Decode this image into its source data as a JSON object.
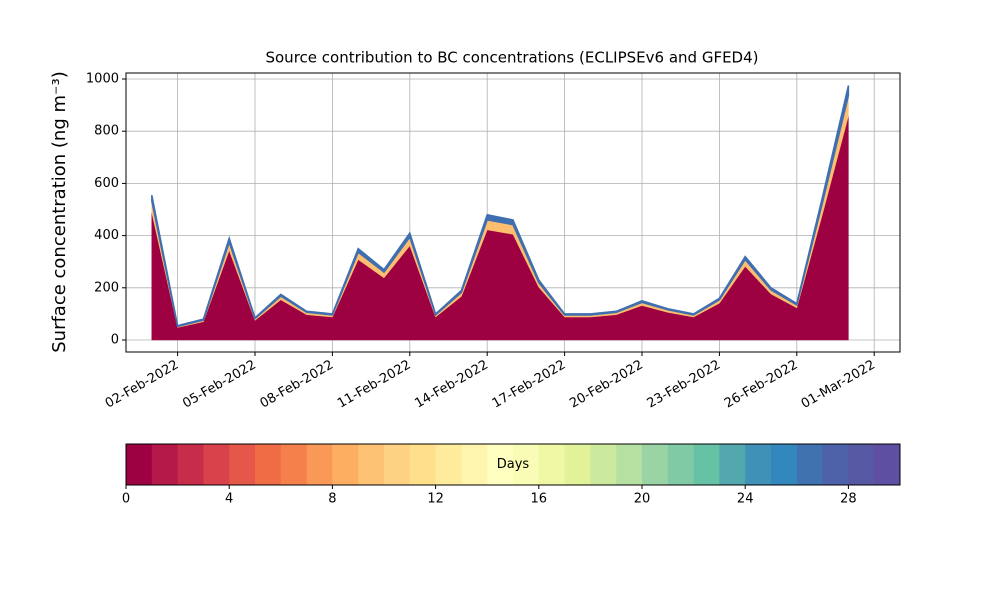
{
  "chart_data": {
    "type": "stacked-area",
    "title": "Source contribution to BC concentrations (ECLIPSEv6 and GFED4)",
    "y_label": "Surface concentration (ng m⁻³)",
    "x": [
      "2022-02-01",
      "2022-02-02",
      "2022-02-03",
      "2022-02-04",
      "2022-02-05",
      "2022-02-06",
      "2022-02-07",
      "2022-02-08",
      "2022-02-09",
      "2022-02-10",
      "2022-02-11",
      "2022-02-12",
      "2022-02-13",
      "2022-02-14",
      "2022-02-15",
      "2022-02-16",
      "2022-02-17",
      "2022-02-18",
      "2022-02-19",
      "2022-02-20",
      "2022-02-21",
      "2022-02-22",
      "2022-02-23",
      "2022-02-24",
      "2022-02-25",
      "2022-02-26",
      "2022-02-27",
      "2022-02-28"
    ],
    "series": [
      {
        "color": "#9e0142",
        "values": [
          488,
          48,
          70,
          343,
          75,
          154,
          97,
          88,
          308,
          238,
          361,
          88,
          167,
          422,
          405,
          202,
          88,
          88,
          97,
          132,
          106,
          88,
          141,
          282,
          176,
          123,
          484,
          858
        ]
      },
      {
        "color": "#fdbf6f",
        "values": [
          44,
          4,
          6,
          31,
          7,
          14,
          9,
          8,
          28,
          22,
          33,
          8,
          15,
          38,
          37,
          18,
          8,
          8,
          9,
          12,
          10,
          8,
          13,
          26,
          16,
          11,
          44,
          78
        ]
      },
      {
        "color": "#3f6fb0",
        "values": [
          23,
          3,
          4,
          16,
          3,
          7,
          4,
          4,
          14,
          10,
          16,
          4,
          8,
          20,
          18,
          10,
          4,
          4,
          4,
          6,
          4,
          4,
          6,
          12,
          8,
          6,
          22,
          39
        ]
      }
    ],
    "xlim": [
      "2022-01-31",
      "2022-03-02"
    ],
    "xticks": [
      {
        "value": "2022-02-02",
        "label": "02-Feb-2022"
      },
      {
        "value": "2022-02-05",
        "label": "05-Feb-2022"
      },
      {
        "value": "2022-02-08",
        "label": "08-Feb-2022"
      },
      {
        "value": "2022-02-11",
        "label": "11-Feb-2022"
      },
      {
        "value": "2022-02-14",
        "label": "14-Feb-2022"
      },
      {
        "value": "2022-02-17",
        "label": "17-Feb-2022"
      },
      {
        "value": "2022-02-20",
        "label": "20-Feb-2022"
      },
      {
        "value": "2022-02-23",
        "label": "23-Feb-2022"
      },
      {
        "value": "2022-02-26",
        "label": "26-Feb-2022"
      },
      {
        "value": "2022-03-01",
        "label": "01-Mar-2022"
      }
    ],
    "ylim": [
      -46,
      1023
    ],
    "yticks": [
      0,
      200,
      400,
      600,
      800,
      1000
    ],
    "grid": true,
    "colorbar": {
      "label": "Days",
      "lim": [
        0,
        30
      ],
      "ticks": [
        0,
        4,
        8,
        12,
        16,
        20,
        24,
        28
      ],
      "colors": [
        "#9e0142",
        "#b4194a",
        "#c82c4b",
        "#da424b",
        "#e55749",
        "#f06c45",
        "#f6804c",
        "#fa9858",
        "#fdae61",
        "#fdc273",
        "#fed283",
        "#fee08b",
        "#feeb9c",
        "#fff5ae",
        "#ffffbf",
        "#f8fcb4",
        "#eef8a5",
        "#e1f299",
        "#ccea9d",
        "#b5e0a2",
        "#9ad4a4",
        "#80caa5",
        "#66c2a5",
        "#52a8ad",
        "#3f91b7",
        "#3288bd",
        "#4172b0",
        "#4d62a8",
        "#5658a4",
        "#5e4fa2"
      ]
    }
  }
}
